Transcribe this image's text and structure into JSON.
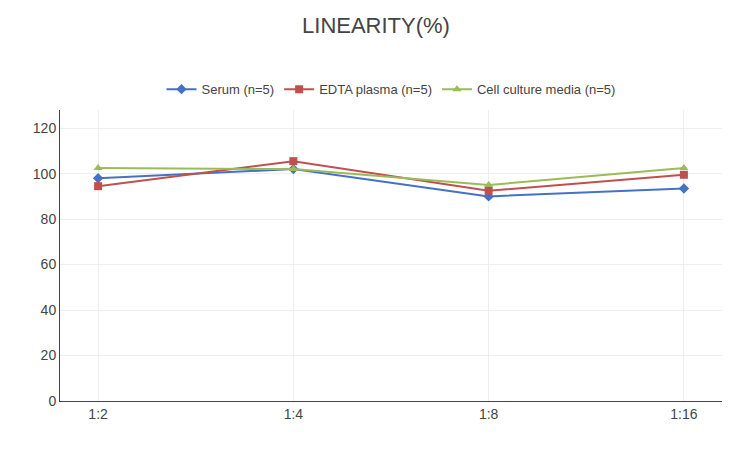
{
  "chart_data": {
    "type": "line",
    "title": "LINEARITY(%)",
    "categories": [
      "1:2",
      "1:4",
      "1:8",
      "1:16"
    ],
    "series": [
      {
        "name": "Serum (n=5)",
        "color": "#4472C4",
        "marker": "diamond",
        "values": [
          98.0,
          102.0,
          90.0,
          93.5
        ]
      },
      {
        "name": "EDTA plasma (n=5)",
        "color": "#C0504D",
        "marker": "square",
        "values": [
          94.5,
          105.5,
          92.5,
          99.5
        ]
      },
      {
        "name": "Cell culture media (n=5)",
        "color": "#9BBB59",
        "marker": "triangle-up",
        "values": [
          102.5,
          102.0,
          95.0,
          102.5
        ]
      }
    ],
    "ylim": [
      0,
      128
    ],
    "yticks": [
      0,
      20,
      40,
      60,
      80,
      100,
      120
    ],
    "grid": true,
    "legend": "top"
  }
}
